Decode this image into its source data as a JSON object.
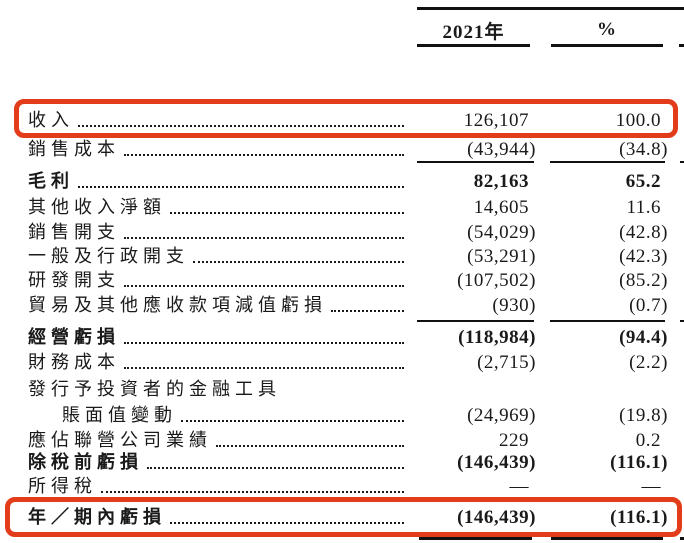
{
  "annotations": {
    "highlight_color": "#e23c1a",
    "highlighted_rows": [
      "收入",
      "年／期內虧損"
    ]
  },
  "table": {
    "header": {
      "year": "2021年",
      "pct": "%"
    },
    "rows": [
      {
        "label": "收入",
        "v2021": "126,107",
        "pct": "100.0",
        "leader": true,
        "highlight": true
      },
      {
        "label": "銷售成本",
        "v2021": "(43,944)",
        "pct": "(34.8)",
        "leader": true,
        "rule_below": true
      },
      {
        "label": "毛利",
        "v2021": "82,163",
        "pct": "65.2",
        "leader": true,
        "bold": true
      },
      {
        "label": "其他收入淨額",
        "v2021": "14,605",
        "pct": "11.6",
        "leader": true
      },
      {
        "label": "銷售開支",
        "v2021": "(54,029)",
        "pct": "(42.8)",
        "leader": true
      },
      {
        "label": "一般及行政開支",
        "v2021": "(53,291)",
        "pct": "(42.3)",
        "leader": true
      },
      {
        "label": "研發開支",
        "v2021": "(107,502)",
        "pct": "(85.2)",
        "leader": true
      },
      {
        "label": "貿易及其他應收款項減值虧損",
        "v2021": "(930)",
        "pct": "(0.7)",
        "leader": true,
        "rule_below": true
      },
      {
        "label": "經營虧損",
        "v2021": "(118,984)",
        "pct": "(94.4)",
        "leader": true,
        "bold": true
      },
      {
        "label": "財務成本",
        "v2021": "(2,715)",
        "pct": "(2.2)",
        "leader": true
      },
      {
        "label": "發行予投資者的金融工具",
        "v2021": "",
        "pct": "",
        "leader": false
      },
      {
        "label": "賬面值變動",
        "v2021": "(24,969)",
        "pct": "(19.8)",
        "leader": true,
        "indent": true
      },
      {
        "label": "應佔聯營公司業績",
        "v2021": "229",
        "pct": "0.2",
        "leader": true
      },
      {
        "label": "除稅前虧損",
        "v2021": "(146,439)",
        "pct": "(116.1)",
        "leader": true,
        "bold": true
      },
      {
        "label": "所得稅",
        "v2021": "—",
        "pct": "—",
        "leader": true
      },
      {
        "label": "年／期內虧損",
        "v2021": "(146,439)",
        "pct": "(116.1)",
        "leader": true,
        "bold": true,
        "highlight": true
      }
    ]
  }
}
